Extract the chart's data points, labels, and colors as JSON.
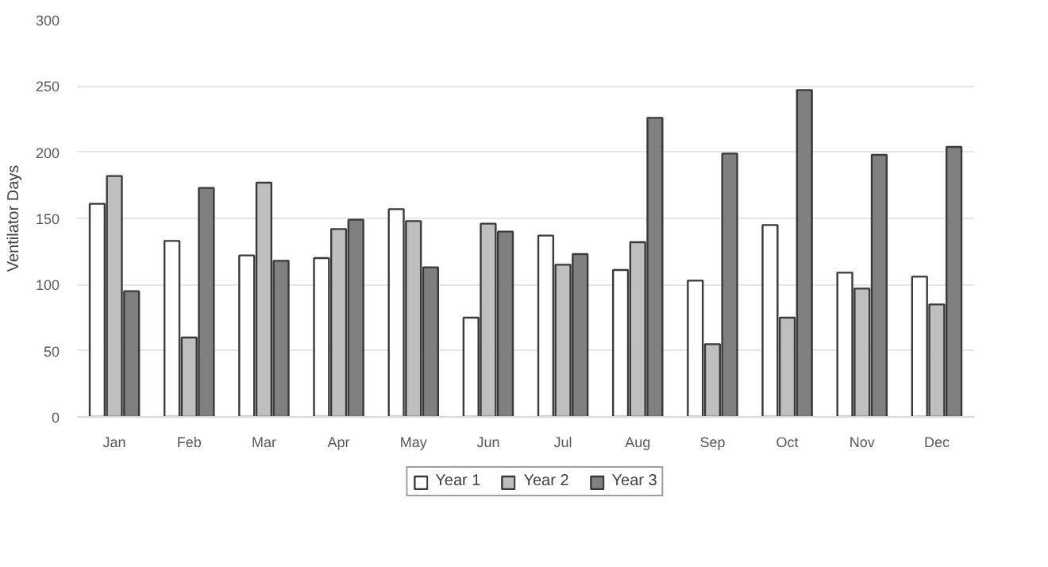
{
  "chart_data": {
    "type": "bar",
    "ylabel": "Ventilator Days",
    "categories": [
      "Jan",
      "Feb",
      "Mar",
      "Apr",
      "May",
      "Jun",
      "Jul",
      "Aug",
      "Sep",
      "Oct",
      "Nov",
      "Dec"
    ],
    "series": [
      {
        "name": "Year 1",
        "color": "#ffffff",
        "values": [
          161,
          133,
          122,
          120,
          157,
          75,
          137,
          111,
          103,
          145,
          109,
          106
        ]
      },
      {
        "name": "Year 2",
        "color": "#bfbfbf",
        "values": [
          182,
          60,
          177,
          142,
          148,
          146,
          115,
          132,
          55,
          75,
          97,
          85
        ]
      },
      {
        "name": "Year 3",
        "color": "#808080",
        "values": [
          95,
          173,
          118,
          149,
          113,
          140,
          123,
          226,
          199,
          247,
          198,
          204
        ]
      }
    ],
    "ylim": [
      0,
      300
    ],
    "yticks": [
      0,
      50,
      100,
      150,
      200,
      250,
      300
    ],
    "grid": "y",
    "legend": "bottom"
  }
}
